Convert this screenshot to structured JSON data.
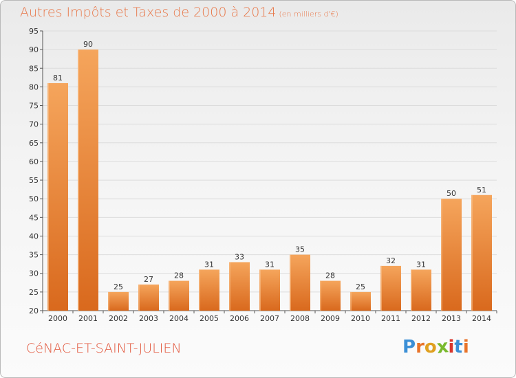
{
  "title": "Autres Impôts et Taxes de 2000 à 2014",
  "subtitle": "(en milliers d'€)",
  "commune": "CéNAC-ET-SAINT-JULIEN",
  "logo": {
    "text": "Proxiti",
    "colors": [
      "#3b8fd6",
      "#e8742a",
      "#e0a020",
      "#79b92e",
      "#d8362d",
      "#3b8fd6",
      "#e8742a"
    ]
  },
  "colors": {
    "bar_light": "#f5a55c",
    "bar_dark": "#d9691d",
    "title": "#e8784a",
    "grid": "#dcdcdc",
    "axis": "#555555"
  },
  "chart_data": {
    "type": "bar",
    "categories": [
      "2000",
      "2001",
      "2002",
      "2003",
      "2004",
      "2005",
      "2006",
      "2007",
      "2008",
      "2009",
      "2010",
      "2011",
      "2012",
      "2013",
      "2014"
    ],
    "values": [
      81,
      90,
      25,
      27,
      28,
      31,
      33,
      31,
      35,
      28,
      25,
      32,
      31,
      50,
      51
    ],
    "ylim": [
      20,
      95
    ],
    "yticks": [
      20,
      25,
      30,
      35,
      40,
      45,
      50,
      55,
      60,
      65,
      70,
      75,
      80,
      85,
      90,
      95
    ],
    "grid": true,
    "data_labels": true
  }
}
